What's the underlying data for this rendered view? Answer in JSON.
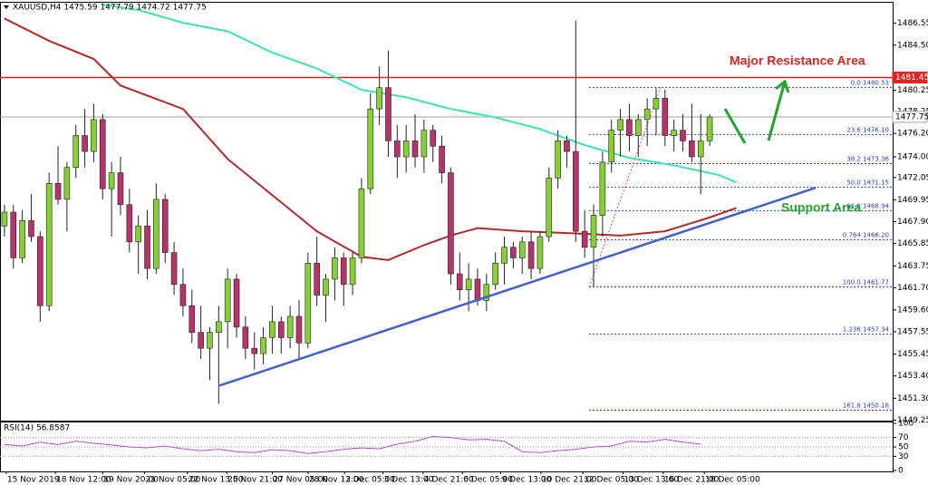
{
  "header": "XAUUSD,H4 1475.59 1477.79 1474.72 1477.75",
  "annotations": [
    "Major Resistance Area",
    "Support Area"
  ],
  "chart_data": [
    {
      "type": "candlestick",
      "up_color": "#86cf34",
      "down_color": "#b8336a",
      "xlim": [
        -0.5,
        99.5
      ],
      "ylim": [
        1449.2,
        1488.4
      ],
      "yticks": [
        1486.55,
        {
          "value": 1484.5,
          "label": "1484.50"
        },
        1480.25,
        1478.25,
        {
          "value": 1476.2,
          "label": "1476.20"
        },
        {
          "value": 1474,
          "label": "1474.00"
        },
        1472.05,
        1469.95,
        {
          "value": 1467.9,
          "label": "1467.90"
        },
        1465.85,
        1463.75,
        {
          "value": 1461.7,
          "label": "1461.70"
        },
        {
          "value": 1459.6,
          "label": "1459.60"
        },
        1457.55,
        1455.45,
        {
          "value": 1453.4,
          "label": "1453.40"
        },
        {
          "value": 1451.3,
          "label": "1451.30"
        },
        1449.25
      ],
      "xticks": [
        {
          "value": 0.2,
          "label": "15 Nov 2019"
        },
        {
          "value": 5.7,
          "label": "18 Nov 12:00"
        },
        {
          "value": 11,
          "label": "19 Nov 20:00"
        },
        {
          "value": 15.7,
          "label": "21 Nov 05:00"
        },
        {
          "value": 20.5,
          "label": "22 Nov 13:00"
        },
        {
          "value": 24.9,
          "label": "25 Nov 21:00"
        },
        {
          "value": 30,
          "label": "27 Nov 05:00"
        },
        {
          "value": 34,
          "label": "28 Nov 13:00"
        },
        {
          "value": 38.1,
          "label": "2 Dec 05:00"
        },
        {
          "value": 42.4,
          "label": "3 Dec 13:00"
        },
        {
          "value": 46.9,
          "label": "4 Dec 21:00"
        },
        {
          "value": 51.3,
          "label": "6 Dec 05:00"
        },
        {
          "value": 55.6,
          "label": "9 Dec 13:00"
        },
        {
          "value": 60.1,
          "label": "10 Dec 21:00"
        },
        {
          "value": 64.8,
          "label": "12 Dec 05:00"
        },
        {
          "value": 69.3,
          "label": "13 Dec 13:00"
        },
        {
          "value": 73.8,
          "label": "16 Dec 21:00"
        },
        {
          "value": 78.4,
          "label": "18 Dec 05:00"
        }
      ],
      "ohlc": [
        [
          1467.5,
          1469.5,
          1466.5,
          1468.8
        ],
        [
          1468.8,
          1469.5,
          1463.5,
          1464.5
        ],
        [
          1464.5,
          1469,
          1464,
          1468
        ],
        [
          1468,
          1470.5,
          1466,
          1466.5
        ],
        [
          1466.5,
          1467,
          1458.5,
          1460
        ],
        [
          1460,
          1472.5,
          1459.5,
          1471.5
        ],
        [
          1471.5,
          1475,
          1469.5,
          1470
        ],
        [
          1470,
          1473.5,
          1467,
          1473
        ],
        [
          1473,
          1477,
          1472,
          1476
        ],
        [
          1476,
          1478.5,
          1473,
          1474.5
        ],
        [
          1474.5,
          1479,
          1473.5,
          1477.5
        ],
        [
          1477.5,
          1478,
          1470,
          1471
        ],
        [
          1471,
          1473.5,
          1466.5,
          1472.5
        ],
        [
          1472.5,
          1474,
          1468.5,
          1469.5
        ],
        [
          1469.5,
          1471,
          1465,
          1466
        ],
        [
          1466,
          1468.5,
          1463,
          1467.5
        ],
        [
          1467.5,
          1469,
          1462.5,
          1463.5
        ],
        [
          1463.5,
          1471.5,
          1463,
          1470
        ],
        [
          1470,
          1470.5,
          1464,
          1465
        ],
        [
          1465,
          1466,
          1461,
          1462
        ],
        [
          1462,
          1463.5,
          1459,
          1460
        ],
        [
          1460,
          1461.5,
          1456.5,
          1457.5
        ],
        [
          1457.5,
          1460,
          1455,
          1456
        ],
        [
          1456,
          1458,
          1453,
          1457.5
        ],
        [
          1457.5,
          1460,
          1450.8,
          1458.5
        ],
        [
          1458.5,
          1463.5,
          1456,
          1462.5
        ],
        [
          1462.5,
          1463,
          1457,
          1458
        ],
        [
          1458,
          1459,
          1455,
          1456
        ],
        [
          1456,
          1457.5,
          1454,
          1455.5
        ],
        [
          1455.5,
          1458,
          1454.5,
          1457
        ],
        [
          1457,
          1460,
          1455.5,
          1458.5
        ],
        [
          1458.5,
          1459,
          1455.5,
          1457
        ],
        [
          1457,
          1460,
          1456,
          1459
        ],
        [
          1459,
          1460.5,
          1455,
          1456.5
        ],
        [
          1456.5,
          1465,
          1456,
          1464
        ],
        [
          1464,
          1466.5,
          1460,
          1461
        ],
        [
          1461,
          1463,
          1458.5,
          1462.5
        ],
        [
          1462.5,
          1465.5,
          1460.5,
          1464.5
        ],
        [
          1464.5,
          1465,
          1460,
          1462
        ],
        [
          1462,
          1465,
          1461,
          1464.5
        ],
        [
          1464.5,
          1472,
          1464,
          1471
        ],
        [
          1471,
          1480,
          1470.5,
          1478.5
        ],
        [
          1478.5,
          1482.5,
          1477,
          1480.5
        ],
        [
          1480.5,
          1484,
          1474,
          1475.5
        ],
        [
          1475.5,
          1477,
          1472,
          1474
        ],
        [
          1474,
          1477,
          1472.5,
          1475.5
        ],
        [
          1475.5,
          1478,
          1473,
          1474
        ],
        [
          1474,
          1477.5,
          1472.5,
          1476.5
        ],
        [
          1476.5,
          1477,
          1473.5,
          1475
        ],
        [
          1475,
          1476,
          1471.5,
          1472.5
        ],
        [
          1472.5,
          1473,
          1462,
          1463
        ],
        [
          1463,
          1465,
          1460.5,
          1461.5
        ],
        [
          1461.5,
          1464,
          1459.5,
          1462.5
        ],
        [
          1462.5,
          1463.5,
          1460,
          1460.5
        ],
        [
          1460.5,
          1463,
          1459.5,
          1462
        ],
        [
          1462,
          1465,
          1461.5,
          1464
        ],
        [
          1464,
          1466.5,
          1462,
          1465.5
        ],
        [
          1465.5,
          1466,
          1463.5,
          1464.5
        ],
        [
          1464.5,
          1466.5,
          1463,
          1466
        ],
        [
          1466,
          1467,
          1462.5,
          1463.5
        ],
        [
          1463.5,
          1467,
          1463,
          1466.5
        ],
        [
          1466.5,
          1473,
          1466,
          1472
        ],
        [
          1472,
          1476.5,
          1471,
          1475.5
        ],
        [
          1475.5,
          1476,
          1473,
          1474.5
        ],
        [
          1474.5,
          1486.8,
          1466,
          1467
        ],
        [
          1467,
          1469,
          1464.5,
          1465.5
        ],
        [
          1465.5,
          1469.5,
          1461.8,
          1468.5
        ],
        [
          1468.5,
          1474.5,
          1466.5,
          1473.5
        ],
        [
          1473.5,
          1477.5,
          1472.5,
          1476.5
        ],
        [
          1476.5,
          1478.5,
          1474,
          1477.5
        ],
        [
          1477.5,
          1479,
          1474.5,
          1476
        ],
        [
          1476,
          1478,
          1474,
          1477.5
        ],
        [
          1477.5,
          1479.5,
          1475,
          1478.5
        ],
        [
          1478.5,
          1480.5,
          1476,
          1479.5
        ],
        [
          1479.5,
          1480.3,
          1475,
          1476
        ],
        [
          1476,
          1477.5,
          1474.5,
          1476.5
        ],
        [
          1476.5,
          1478,
          1474.5,
          1475.5
        ],
        [
          1475.5,
          1479,
          1473.5,
          1474
        ],
        [
          1474,
          1478,
          1470.5,
          1475.5
        ],
        [
          1475.5,
          1478,
          1475,
          1477.75
        ]
      ],
      "series": [
        {
          "color": "#3de3b0",
          "x": [
            11,
            15,
            20,
            25,
            30,
            35,
            40,
            45,
            50,
            55,
            60,
            65,
            70,
            75,
            80,
            82
          ],
          "values": [
            1488.3,
            1487.8,
            1486.6,
            1485.8,
            1483.8,
            1482.3,
            1480.3,
            1479.6,
            1478.5,
            1477.7,
            1476.6,
            1475.1,
            1473.9,
            1473.2,
            1472.3,
            1471.6
          ]
        },
        {
          "color": "#b22a2a",
          "x": [
            0,
            5,
            10,
            13,
            20,
            25,
            30,
            35,
            40,
            43,
            47,
            50,
            53,
            58,
            64,
            69,
            74,
            79,
            82
          ],
          "values": [
            1487,
            1484.9,
            1483.2,
            1480.7,
            1478.5,
            1473.8,
            1470.4,
            1467,
            1464.6,
            1464.3,
            1465.7,
            1466.6,
            1467.3,
            1467,
            1466.8,
            1466.6,
            1467,
            1468.3,
            1469.2
          ]
        }
      ],
      "hlines": [
        {
          "value": 1481.45,
          "color": "#e02424"
        },
        {
          "value": 1477.75,
          "color": "#a0a0a0"
        }
      ],
      "trendlines": [
        {
          "color": "#3f62c8",
          "x": [
            24.1,
            90.9
          ],
          "y": [
            1452.5,
            1471.1
          ]
        }
      ],
      "fib_line": {
        "color": "#e05050",
        "x": [
          65.5,
          73.5
        ],
        "y": [
          1461.77,
          1480.53
        ]
      },
      "fib_color": "#2a3fd0",
      "fib_levels": [
        {
          "value": 1480.53,
          "label": "0.0 1480.53"
        },
        {
          "value": 1476.1,
          "label": "23.6 1476.10"
        },
        {
          "value": 1473.36,
          "label": "38.2 1473.36"
        },
        {
          "value": 1471.15,
          "label": "50.0 1471.15"
        },
        {
          "value": 1468.94,
          "label": "61.8 1468.94"
        },
        {
          "value": 1466.2,
          "label": "0.764 1466.20"
        },
        {
          "value": 1461.77,
          "label": "100.0 1461.77"
        },
        {
          "value": 1457.34,
          "label": "1.236 1457.34"
        },
        {
          "value": 1450.18,
          "label": "161.8 1450.18"
        }
      ]
    },
    {
      "type": "line",
      "title": "RSI(14) 56.8587",
      "color": "#b44fd0",
      "x": [
        0,
        2,
        4,
        6,
        8,
        10,
        12,
        14,
        16,
        18,
        20,
        22,
        24,
        26,
        28,
        30,
        32,
        34,
        36,
        38,
        40,
        42,
        44,
        46,
        48,
        50,
        52,
        54,
        56,
        58,
        60,
        62,
        64,
        66,
        68,
        70,
        72,
        74,
        76,
        78
      ],
      "values": [
        55,
        52,
        60,
        55,
        62,
        58,
        54,
        50,
        48,
        52,
        46,
        42,
        45,
        40,
        38,
        44,
        42,
        36,
        40,
        45,
        48,
        46,
        56,
        62,
        72,
        70,
        65,
        66,
        62,
        40,
        38,
        42,
        45,
        50,
        52,
        62,
        60,
        66,
        60,
        56
      ],
      "ylim": [
        0,
        100
      ],
      "yticks": [
        0,
        30,
        50,
        70,
        100
      ]
    }
  ]
}
